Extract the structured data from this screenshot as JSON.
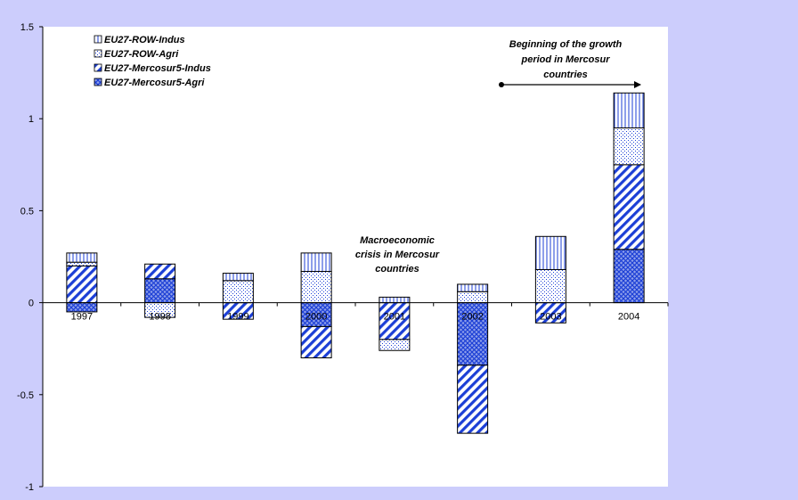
{
  "chart_data": {
    "type": "bar",
    "stacked": true,
    "categories": [
      "1997",
      "1998",
      "1999",
      "2000",
      "2001",
      "2002",
      "2003",
      "2004"
    ],
    "series": [
      {
        "name": "EU27-Mercosur5-Agri",
        "pattern": "crosshatch",
        "values": [
          -0.05,
          0.13,
          0.0,
          -0.13,
          0.0,
          -0.34,
          0.0,
          0.29
        ]
      },
      {
        "name": "EU27-Mercosur5-Indus",
        "pattern": "diagonal",
        "values": [
          0.2,
          0.08,
          -0.09,
          -0.17,
          -0.2,
          -0.37,
          -0.11,
          0.46
        ]
      },
      {
        "name": "EU27-ROW-Agri",
        "pattern": "dots",
        "values": [
          0.02,
          -0.08,
          0.12,
          0.17,
          0.0,
          0.06,
          0.18,
          0.2
        ]
      },
      {
        "name": "EU27-ROW-Indus",
        "pattern": "vertical",
        "values": [
          0.05,
          0.0,
          0.04,
          0.1,
          0.03,
          0.04,
          0.18,
          0.19
        ]
      }
    ],
    "negative_extensions": [
      {
        "category": "2001",
        "series": "EU27-ROW-Agri",
        "value": -0.06
      }
    ],
    "ylim": [
      -1,
      1.5
    ],
    "yticks": [
      "1.5",
      "1",
      "0.5",
      "0",
      "-0.5",
      "-1"
    ],
    "ytick_values": [
      1.5,
      1,
      0.5,
      0,
      -0.5,
      -1
    ],
    "legend": [
      {
        "label": "EU27-ROW-Indus",
        "pattern": "vertical"
      },
      {
        "label": "EU27-ROW-Agri",
        "pattern": "dots"
      },
      {
        "label": "EU27-Mercosur5-Indus",
        "pattern": "diagonal"
      },
      {
        "label": "EU27-Mercosur5-Agri",
        "pattern": "crosshatch"
      }
    ],
    "legend_position": "top-left",
    "grid": false,
    "annotations": {
      "crisis": [
        "Macroeconomic",
        "crisis in Mercosur",
        "countries"
      ],
      "growth": [
        "Beginning of the growth",
        "period in Mercosur",
        "countries"
      ]
    },
    "colors": {
      "pattern": "#1c3fd6",
      "outline": "#000000",
      "background": "#cccdfc",
      "plot_area": "#ffffff"
    }
  }
}
